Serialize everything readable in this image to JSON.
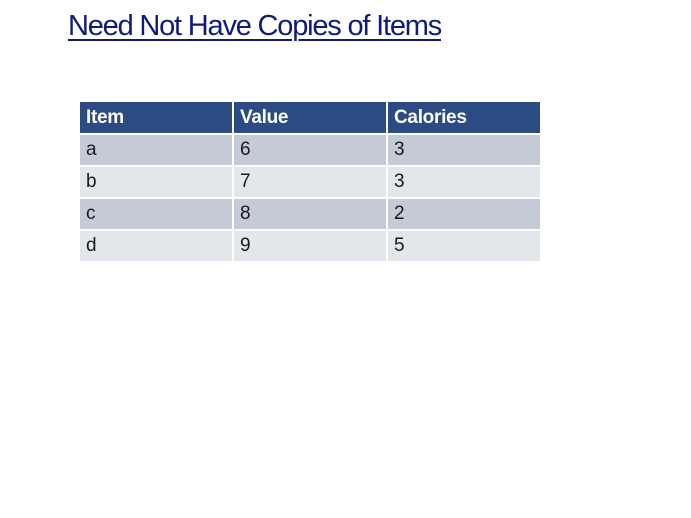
{
  "title": "Need Not Have Copies of Items",
  "table": {
    "headers": [
      "Item",
      "Value",
      "Calories"
    ],
    "rows": [
      [
        "a",
        "6",
        "3"
      ],
      [
        "b",
        "7",
        "3"
      ],
      [
        "c",
        "8",
        "2"
      ],
      [
        "d",
        "9",
        "5"
      ]
    ]
  },
  "colors": {
    "title": "#0e1b7a",
    "header_bg": "#2d4b83",
    "row_odd_bg": "#c4cad6",
    "row_even_bg": "#e3e6eb"
  }
}
